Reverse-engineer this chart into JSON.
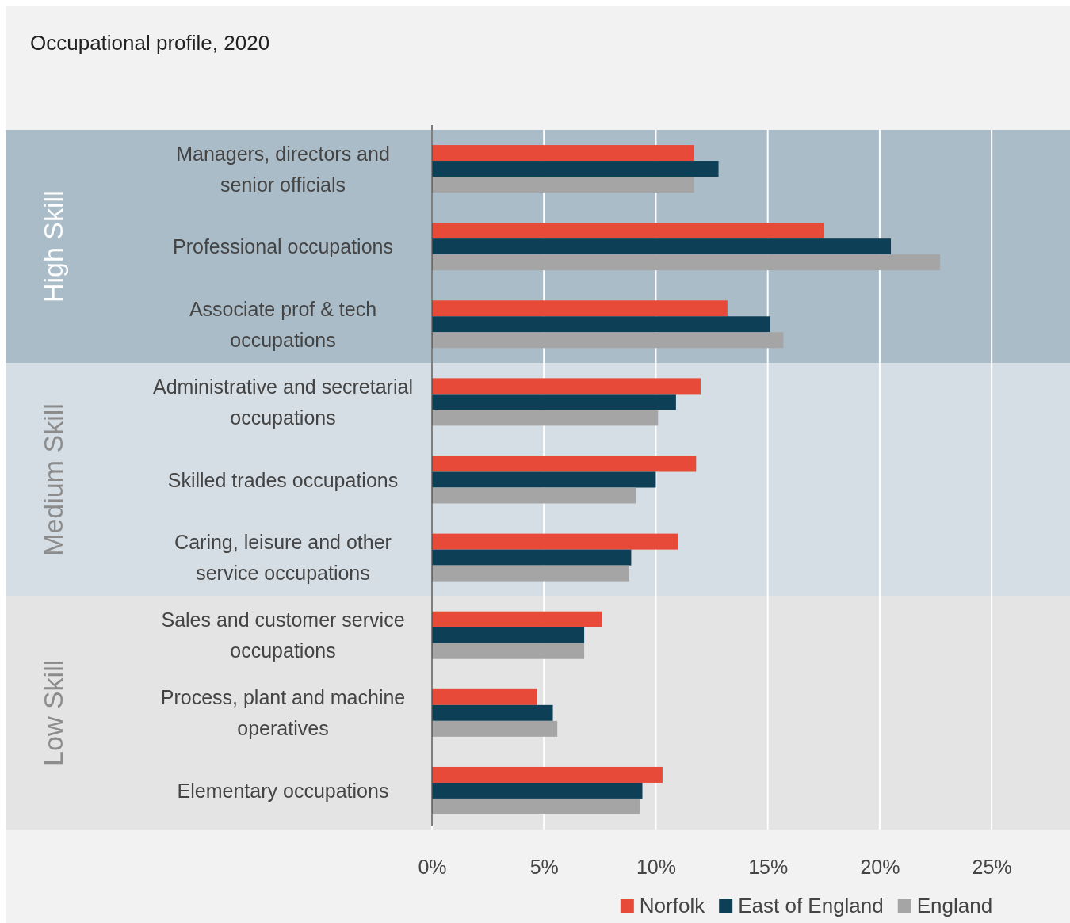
{
  "chart_data": {
    "type": "bar",
    "orientation": "horizontal",
    "title": "Occupational profile, 2020",
    "categories": [
      "Managers, directors and senior officials",
      "Professional occupations",
      "Associate prof & tech occupations",
      "Administrative and secretarial occupations",
      "Skilled trades occupations",
      "Caring, leisure and other service occupations",
      "Sales and customer service occupations",
      "Process, plant and machine operatives",
      "Elementary occupations"
    ],
    "series": [
      {
        "name": "Norfolk",
        "color": "#e84a3a",
        "values": [
          11.7,
          17.5,
          13.2,
          12.0,
          11.8,
          11.0,
          7.6,
          4.7,
          10.3
        ]
      },
      {
        "name": "East of England",
        "color": "#0d3f56",
        "values": [
          12.8,
          20.5,
          15.1,
          10.9,
          10.0,
          8.9,
          6.8,
          5.4,
          9.4
        ]
      },
      {
        "name": "England",
        "color": "#a5a5a5",
        "values": [
          11.7,
          22.7,
          15.7,
          10.1,
          9.1,
          8.8,
          6.8,
          5.6,
          9.3
        ]
      }
    ],
    "xlim": [
      0,
      28.5
    ],
    "xticks": [
      {
        "value": 0,
        "label": "0%"
      },
      {
        "value": 5,
        "label": "5%"
      },
      {
        "value": 10,
        "label": "10%"
      },
      {
        "value": 15,
        "label": "15%"
      },
      {
        "value": 20,
        "label": "20%"
      },
      {
        "value": 25,
        "label": "25%"
      }
    ],
    "grid": "x",
    "legend": "bottom",
    "bands": [
      {
        "axis": "y",
        "from": "Managers, directors and senior officials",
        "to": "Associate prof & tech occupations",
        "label": "High Skill",
        "color": "#abbcc9"
      },
      {
        "axis": "y",
        "from": "Administrative and secretarial occupations",
        "to": "Caring, leisure and other service occupations",
        "label": "Medium Skill",
        "color": "#d6dee5"
      },
      {
        "axis": "y",
        "from": "Sales and customer service occupations",
        "to": "Elementary occupations",
        "label": "Low Skill",
        "color": "#e4e4e4"
      }
    ]
  }
}
